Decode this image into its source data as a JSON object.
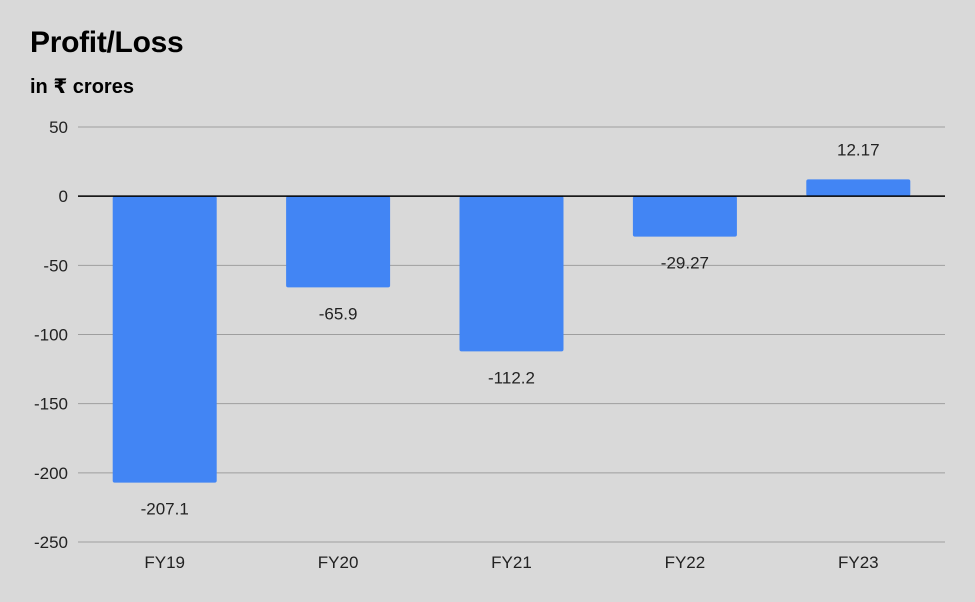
{
  "chart_data": {
    "type": "bar",
    "title": "Profit/Loss",
    "subtitle": "in ₹ crores",
    "categories": [
      "FY19",
      "FY20",
      "FY21",
      "FY22",
      "FY23"
    ],
    "values": [
      -207.1,
      -65.9,
      -112.2,
      -29.27,
      12.17
    ],
    "data_labels": [
      "-207.1",
      "-65.9",
      "-112.2",
      "-29.27",
      "12.17"
    ],
    "y_ticks": [
      50,
      0,
      -50,
      -100,
      -150,
      -200,
      -250
    ],
    "ylim": [
      -250,
      50
    ],
    "grid": true,
    "legend": "none",
    "bar_color": "#4285f4"
  }
}
